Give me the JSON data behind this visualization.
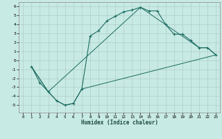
{
  "xlabel": "Humidex (Indice chaleur)",
  "bg_color": "#c8eae4",
  "grid_color": "#b0ccc8",
  "line_color": "#1a6b60",
  "xlim": [
    -0.5,
    23.5
  ],
  "ylim": [
    -5.8,
    6.5
  ],
  "xticks": [
    0,
    1,
    2,
    3,
    4,
    5,
    6,
    7,
    8,
    9,
    10,
    11,
    12,
    13,
    14,
    15,
    16,
    17,
    18,
    19,
    20,
    21,
    22,
    23
  ],
  "yticks": [
    -5,
    -4,
    -3,
    -2,
    -1,
    0,
    1,
    2,
    3,
    4,
    5,
    6
  ],
  "line1_x": [
    1,
    2,
    3,
    4,
    5,
    6,
    7,
    8,
    9,
    10,
    11,
    12,
    13,
    14,
    15,
    16,
    17,
    18,
    19,
    20,
    21,
    22,
    23
  ],
  "line1_y": [
    -0.7,
    -2.5,
    -3.5,
    -4.5,
    -5.0,
    -4.8,
    -3.2,
    2.7,
    3.3,
    4.4,
    4.9,
    5.4,
    5.6,
    5.9,
    5.5,
    5.5,
    4.0,
    2.9,
    2.9,
    2.2,
    1.4,
    1.4,
    0.6
  ],
  "line2_x": [
    1,
    3,
    4,
    5,
    6,
    7,
    23
  ],
  "line2_y": [
    -0.7,
    -3.5,
    -4.5,
    -5.0,
    -4.8,
    -3.2,
    0.6
  ],
  "line3_x": [
    1,
    3,
    14,
    21,
    22,
    23
  ],
  "line3_y": [
    -0.7,
    -3.5,
    5.9,
    1.4,
    1.4,
    0.6
  ]
}
